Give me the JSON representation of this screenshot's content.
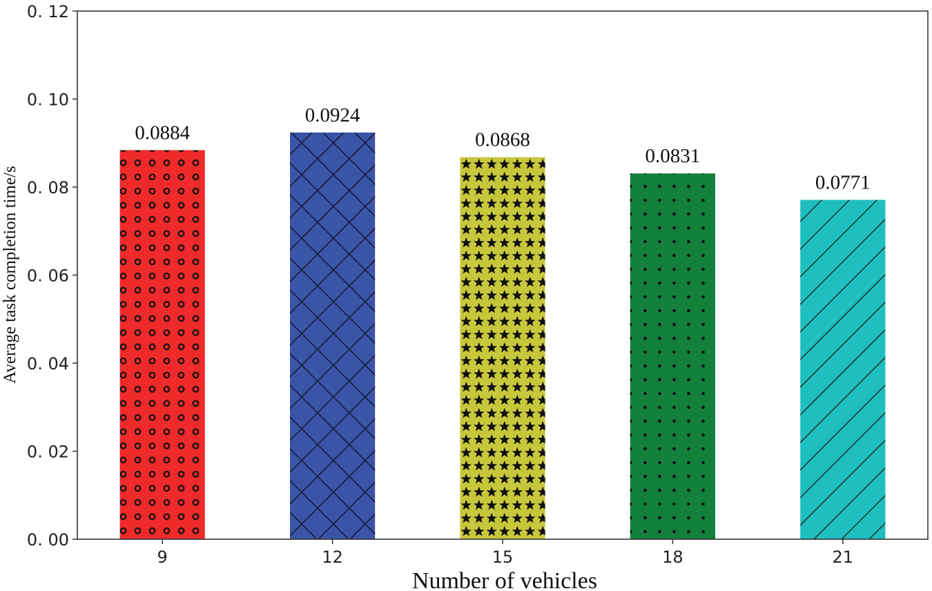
{
  "chart_data": {
    "type": "bar",
    "categories": [
      "9",
      "12",
      "15",
      "18",
      "21"
    ],
    "values": [
      0.0884,
      0.0924,
      0.0868,
      0.0831,
      0.0771
    ],
    "data_labels": [
      "0.0884",
      "0.0924",
      "0.0868",
      "0.0831",
      "0.0771"
    ],
    "bar_colors": [
      "#ee2a2a",
      "#3a55a8",
      "#c7c73c",
      "#13803b",
      "#1fbfc0"
    ],
    "bar_patterns": [
      "circles",
      "crosshatch",
      "stars",
      "dots",
      "diagonal"
    ],
    "title": "",
    "xlabel": "Number of vehicles",
    "ylabel": "Average task completion time/s",
    "ylim": [
      0,
      0.12
    ],
    "yticks": [
      0,
      0.02,
      0.04,
      0.06,
      0.08,
      0.1,
      0.12
    ],
    "ytick_labels": [
      "0. 00",
      "0. 02",
      "0. 04",
      "0. 06",
      "0. 08",
      "0. 10",
      "0. 12"
    ],
    "grid": false,
    "legend": "none"
  }
}
